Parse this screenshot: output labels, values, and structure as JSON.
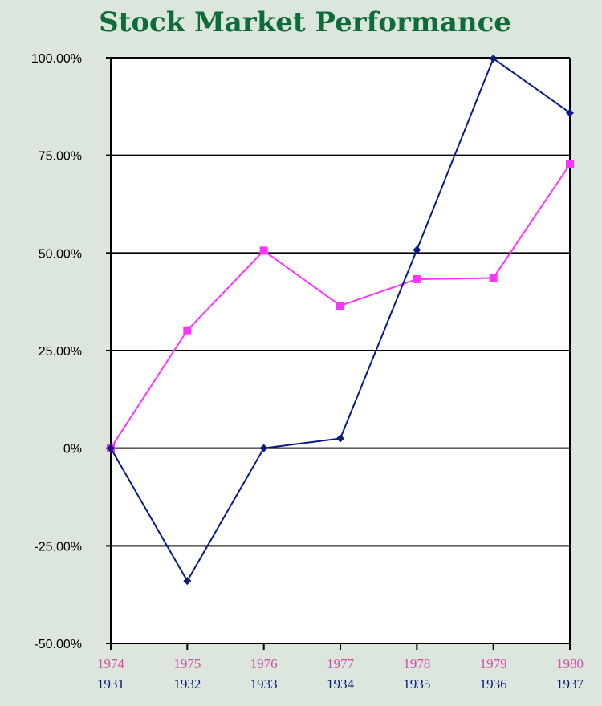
{
  "chart_data": {
    "type": "line",
    "title": "Stock Market Performance",
    "xlabel": "",
    "ylabel": "",
    "ylim": [
      -50,
      100
    ],
    "ytick_values": [
      -50,
      -25,
      0,
      25,
      50,
      75,
      100
    ],
    "ytick_labels": [
      "-50.00%",
      "-25.00%",
      "0%",
      "25.00%",
      "50.00%",
      "75.00%",
      "100.00%"
    ],
    "categories_top": [
      "1974",
      "1975",
      "1976",
      "1977",
      "1978",
      "1979",
      "1980"
    ],
    "categories_bottom": [
      "1931",
      "1932",
      "1933",
      "1934",
      "1935",
      "1936",
      "1937"
    ],
    "grid": true,
    "legend": "none",
    "series": [
      {
        "color": "#ff33ff",
        "marker": "square",
        "label_row": "top",
        "values": [
          0,
          30.2,
          50.6,
          36.5,
          43.3,
          43.6,
          72.7
        ]
      },
      {
        "color": "#0a1a80",
        "marker": "diamond",
        "label_row": "bottom",
        "values": [
          0,
          -34,
          0,
          2.5,
          50.8,
          99.8,
          85.9
        ]
      }
    ]
  }
}
